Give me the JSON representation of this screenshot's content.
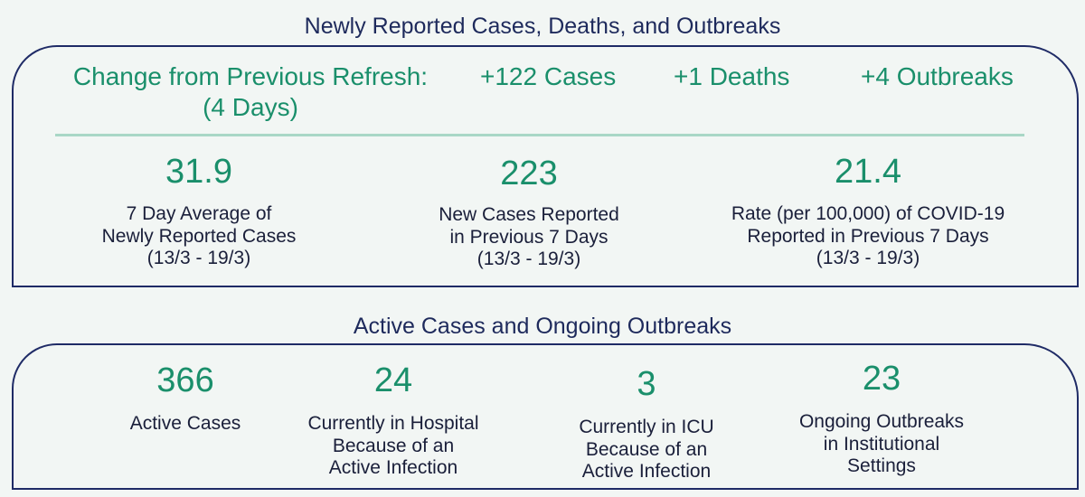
{
  "section1": {
    "title": "Newly Reported Cases, Deaths, and Outbreaks",
    "change_label_line1": "Change from Previous Refresh:",
    "change_label_line2": "(4 Days)",
    "change_cases": "+122 Cases",
    "change_deaths": "+1 Deaths",
    "change_outbreaks": "+4 Outbreaks",
    "stats": [
      {
        "value": "31.9",
        "line1": "7 Day Average of",
        "line2": "Newly Reported Cases",
        "line3": "(13/3 - 19/3)"
      },
      {
        "value": "223",
        "line1": "New Cases Reported",
        "line2": "in Previous 7 Days",
        "line3": "(13/3 - 19/3)"
      },
      {
        "value": "21.4",
        "line1": "Rate (per 100,000) of COVID-19",
        "line2": "Reported in Previous 7 Days",
        "line3": "(13/3 - 19/3)"
      }
    ]
  },
  "section2": {
    "title": "Active Cases and Ongoing Outbreaks",
    "stats": [
      {
        "value": "366",
        "line1": "Active Cases"
      },
      {
        "value": "24",
        "line1": "Currently in Hospital",
        "line2": "Because of an",
        "line3": "Active Infection"
      },
      {
        "value": "3",
        "line1": "Currently in ICU",
        "line2": "Because of an",
        "line3": "Active Infection"
      },
      {
        "value": "23",
        "line1": "Ongoing Outbreaks",
        "line2": "in Institutional",
        "line3": "Settings"
      }
    ]
  },
  "colors": {
    "accent_green": "#1a8f6b",
    "navy": "#1f2b66",
    "divider": "#a9d7c6",
    "background": "#f2f6f4"
  }
}
